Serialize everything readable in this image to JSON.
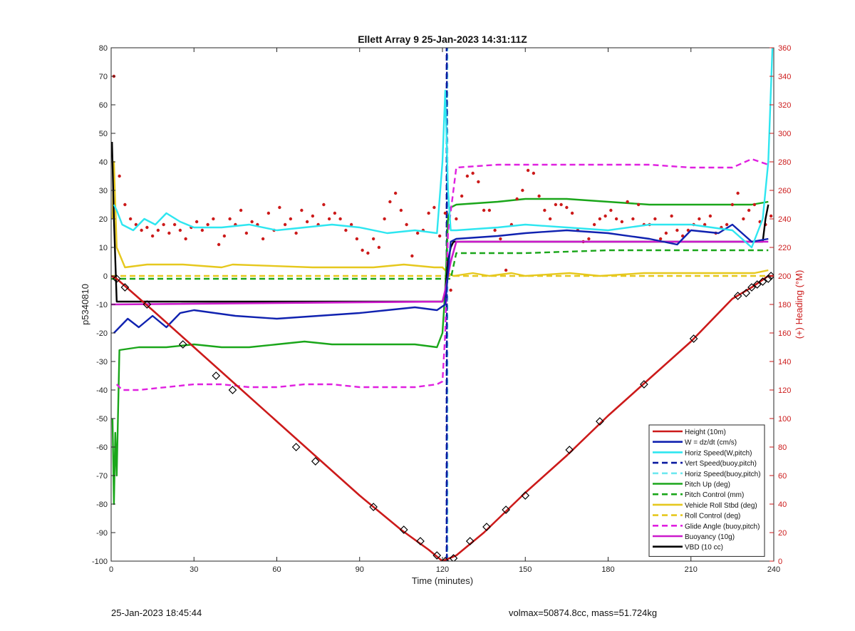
{
  "chart_data": {
    "type": "line",
    "title": "Ellett Array 9 25-Jan-2023 14:31:11Z",
    "xlabel": "Time (minutes)",
    "ylabel_left": "p5340810",
    "ylabel_right": "(+) Heading (°M)",
    "xlim": [
      0,
      240
    ],
    "ylim_left": [
      -100,
      80
    ],
    "ylim_right": [
      0,
      360
    ],
    "xticks": [
      0,
      30,
      60,
      90,
      120,
      150,
      180,
      210,
      240
    ],
    "yticks_left": [
      -100,
      -90,
      -80,
      -70,
      -60,
      -50,
      -40,
      -30,
      -20,
      -10,
      0,
      10,
      20,
      30,
      40,
      50,
      60,
      70,
      80
    ],
    "yticks_right": [
      0,
      20,
      40,
      60,
      80,
      100,
      120,
      140,
      160,
      180,
      200,
      220,
      240,
      260,
      280,
      300,
      320,
      340,
      360
    ],
    "grid": true,
    "legend_position": "bottom-right",
    "series": [
      {
        "name": "Height (10m)",
        "color": "#cc1a1a",
        "style": "solid",
        "axis": "left",
        "x": [
          0,
          2,
          15,
          30,
          45,
          60,
          75,
          90,
          105,
          115,
          120,
          125,
          135,
          150,
          165,
          180,
          195,
          210,
          225,
          232,
          238,
          240
        ],
        "y": [
          0,
          -1,
          -12,
          -25,
          -38,
          -51,
          -64,
          -77,
          -89,
          -96,
          -100,
          -98,
          -90,
          -76,
          -63,
          -49,
          -36,
          -23,
          -8,
          -4,
          0,
          0
        ]
      },
      {
        "name": "W = dz/dt (cm/s)",
        "color": "#1022b0",
        "style": "solid",
        "axis": "left",
        "x": [
          1,
          2,
          6,
          10,
          15,
          20,
          25,
          30,
          45,
          60,
          75,
          90,
          100,
          110,
          118,
          121,
          123,
          125,
          140,
          150,
          165,
          180,
          195,
          205,
          210,
          220,
          225,
          232,
          238
        ],
        "y": [
          -20,
          -19,
          -15,
          -18,
          -14,
          -18,
          -13,
          -12,
          -14,
          -15,
          -14,
          -13,
          -12,
          -11,
          -12,
          -10,
          12,
          13,
          14,
          15,
          16,
          15,
          13,
          11,
          16,
          15,
          18,
          12,
          13
        ]
      },
      {
        "name": "Horiz Speed(W,pitch)",
        "color": "#2ee6f0",
        "style": "solid",
        "axis": "left",
        "x": [
          1,
          2,
          4,
          8,
          12,
          16,
          20,
          25,
          30,
          40,
          50,
          60,
          70,
          80,
          90,
          100,
          110,
          118,
          120,
          121,
          122,
          123,
          125,
          140,
          150,
          165,
          180,
          195,
          210,
          225,
          232,
          236,
          238,
          239.5
        ],
        "y": [
          25,
          23,
          18,
          16,
          20,
          18,
          22,
          19,
          17,
          17,
          18,
          16,
          17,
          18,
          17,
          15,
          16,
          15,
          40,
          65,
          30,
          16,
          16,
          17,
          18,
          17,
          16,
          18,
          18,
          16,
          10,
          20,
          40,
          80
        ]
      },
      {
        "name": "Vert Speed(buoy,pitch)",
        "color": "#0a1aa0",
        "style": "dashed",
        "axis": "left",
        "x": [
          121.5,
          121.5,
          121.6,
          121.6
        ],
        "y": [
          -100,
          80,
          80,
          -100
        ]
      },
      {
        "name": "Horiz Speed(buoy,pitch)",
        "color": "#6fe8f0",
        "style": "dashed",
        "axis": "left",
        "x": [
          121.8,
          121.8
        ],
        "y": [
          -100,
          80
        ]
      },
      {
        "name": "Pitch Up (deg)",
        "color": "#1aa61a",
        "style": "solid",
        "axis": "left",
        "x": [
          0.5,
          1,
          1.5,
          2,
          3,
          10,
          20,
          30,
          40,
          50,
          60,
          70,
          80,
          90,
          100,
          110,
          118,
          120,
          121,
          122,
          123,
          125,
          140,
          150,
          165,
          180,
          195,
          210,
          225,
          232,
          238
        ],
        "y": [
          -50,
          -80,
          -55,
          -70,
          -26,
          -25,
          -25,
          -24,
          -25,
          -25,
          -24,
          -23,
          -24,
          -24,
          -24,
          -24,
          -25,
          -20,
          -5,
          20,
          24,
          25,
          26,
          27,
          27,
          26,
          25,
          25,
          25,
          25,
          26
        ]
      },
      {
        "name": "Pitch Control (mm)",
        "color": "#1aa61a",
        "style": "dashed",
        "axis": "left",
        "x": [
          0,
          120,
          123,
          125,
          150,
          180,
          210,
          238
        ],
        "y": [
          -1,
          -1,
          -1,
          8,
          8,
          9,
          9,
          9
        ]
      },
      {
        "name": "Vehicle Roll Stbd (deg)",
        "color": "#e6c81e",
        "style": "solid",
        "axis": "left",
        "x": [
          0.5,
          1,
          2,
          5,
          13,
          26,
          40,
          44,
          73,
          95,
          106,
          117,
          120,
          122,
          124,
          131,
          137,
          145,
          150,
          166,
          177,
          193,
          225,
          233,
          238
        ],
        "y": [
          20,
          40,
          10,
          3,
          4,
          4,
          3,
          4,
          3,
          3,
          4,
          3,
          3,
          1,
          0,
          1,
          0,
          1,
          0,
          1,
          0,
          1,
          1,
          1,
          2
        ]
      },
      {
        "name": "Roll Control (deg)",
        "color": "#e6c81e",
        "style": "dashed",
        "axis": "left",
        "x": [
          0,
          120,
          124,
          238
        ],
        "y": [
          0,
          0,
          0,
          0
        ]
      },
      {
        "name": "Glide Angle (buoy,pitch)",
        "color": "#e020e0",
        "style": "dashed",
        "axis": "left",
        "x": [
          2,
          4,
          10,
          20,
          30,
          40,
          50,
          60,
          70,
          80,
          90,
          100,
          110,
          118,
          120,
          121,
          122,
          125,
          140,
          150,
          165,
          180,
          195,
          210,
          225,
          232,
          238
        ],
        "y": [
          -38,
          -40,
          -40,
          -39,
          -38,
          -38,
          -39,
          -39,
          -38,
          -38,
          -39,
          -39,
          -39,
          -38,
          -37,
          -20,
          15,
          38,
          39,
          39,
          39,
          39,
          39,
          38,
          38,
          41,
          39
        ]
      },
      {
        "name": "Buoyancy (10g)",
        "color": "#cc1acc",
        "style": "solid",
        "axis": "left",
        "x": [
          0,
          120,
          121,
          123,
          125,
          238
        ],
        "y": [
          -10,
          -9,
          -5,
          5,
          12,
          12
        ]
      },
      {
        "name": "VBD (10 cc)",
        "color": "#000000",
        "style": "solid",
        "axis": "left",
        "x": [
          0.3,
          1,
          2,
          120,
          121,
          122,
          123,
          124,
          236,
          237,
          238
        ],
        "y": [
          47,
          20,
          -9,
          -9,
          -6,
          5,
          10,
          12,
          12,
          20,
          25
        ]
      },
      {
        "color": "#cc1a1a",
        "style": "dots",
        "axis": "right",
        "x": [
          1,
          3,
          5,
          7,
          9,
          11,
          13,
          15,
          17,
          19,
          21,
          23,
          25,
          27,
          29,
          31,
          33,
          35,
          37,
          39,
          41,
          43,
          45,
          47,
          49,
          51,
          53,
          55,
          57,
          59,
          61,
          63,
          65,
          67,
          69,
          71,
          73,
          75,
          77,
          79,
          81,
          83,
          85,
          87,
          89,
          91,
          93,
          95,
          97,
          99,
          101,
          103,
          105,
          107,
          109,
          111,
          113,
          115,
          117,
          119,
          121,
          123,
          125,
          127,
          129,
          131,
          133,
          135,
          137,
          139,
          141,
          143,
          145,
          147,
          149,
          151,
          153,
          155,
          157,
          159,
          161,
          163,
          165,
          167,
          169,
          171,
          173,
          175,
          177,
          179,
          181,
          183,
          185,
          187,
          189,
          191,
          193,
          195,
          197,
          199,
          201,
          203,
          205,
          207,
          209,
          211,
          213,
          215,
          217,
          219,
          221,
          223,
          225,
          227,
          229,
          231,
          233,
          235,
          237,
          239
        ],
        "y": [
          340,
          270,
          250,
          240,
          236,
          232,
          234,
          228,
          232,
          236,
          230,
          236,
          232,
          226,
          234,
          238,
          232,
          236,
          240,
          222,
          228,
          240,
          236,
          246,
          230,
          238,
          236,
          226,
          244,
          232,
          248,
          236,
          240,
          230,
          246,
          238,
          242,
          236,
          250,
          240,
          244,
          240,
          232,
          236,
          226,
          218,
          216,
          226,
          220,
          240,
          252,
          258,
          246,
          236,
          214,
          230,
          232,
          244,
          248,
          228,
          244,
          190,
          240,
          256,
          270,
          272,
          266,
          246,
          246,
          232,
          226,
          204,
          236,
          254,
          260,
          274,
          272,
          256,
          246,
          240,
          250,
          250,
          248,
          244,
          232,
          224,
          226,
          236,
          240,
          242,
          246,
          240,
          238,
          252,
          240,
          250,
          236,
          236,
          240,
          226,
          230,
          242,
          232,
          228,
          232,
          236,
          240,
          236,
          242,
          230,
          234,
          236,
          250,
          258,
          240,
          246,
          250,
          238,
          236,
          242
        ]
      },
      {
        "color": "#cc1a1a",
        "style": "dashed",
        "axis": "right",
        "x": [
          0,
          238
        ],
        "y": [
          235,
          235
        ]
      }
    ],
    "markers": {
      "name": "diamond markers on Height trace",
      "x": [
        2,
        5,
        13,
        26,
        38,
        44,
        67,
        74,
        95,
        106,
        112,
        118,
        121,
        124,
        130,
        136,
        143,
        150,
        166,
        177,
        193,
        211,
        227,
        230,
        232,
        234,
        236,
        238,
        239
      ],
      "y": [
        -1,
        -4,
        -10,
        -24,
        -35,
        -40,
        -60,
        -65,
        -81,
        -89,
        -93,
        -98,
        -100,
        -99,
        -93,
        -88,
        -82,
        -77,
        -61,
        -51,
        -38,
        -22,
        -7,
        -6,
        -4,
        -3,
        -2,
        -1,
        0
      ]
    }
  },
  "footer": {
    "left": "25-Jan-2023 18:45:44",
    "right": "volmax=50874.8cc, mass=51.724kg"
  }
}
